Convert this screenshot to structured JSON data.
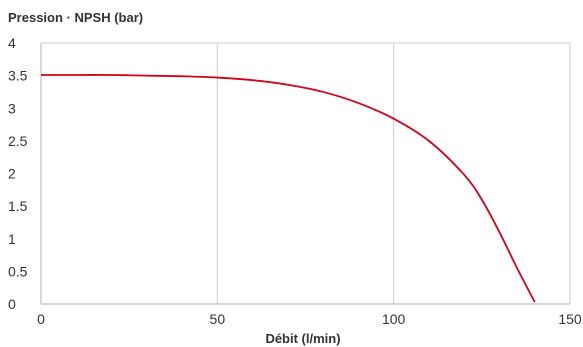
{
  "chart_data": {
    "type": "line",
    "title": "",
    "ylabel": "Pression · NPSH (bar)",
    "xlabel": "Débit (l/min)",
    "xlim": [
      0,
      150
    ],
    "ylim": [
      0,
      4
    ],
    "xticks": [
      0,
      50,
      100,
      150
    ],
    "yticks": [
      0,
      0.5,
      1,
      1.5,
      2,
      2.5,
      3,
      3.5,
      4
    ],
    "xtick_labels": [
      "0",
      "50",
      "100",
      "150"
    ],
    "ytick_labels": [
      "0",
      "0.5",
      "1",
      "1.5",
      "2",
      "2.5",
      "3",
      "3.5",
      "4"
    ],
    "grid": "vertical lines only",
    "series": [
      {
        "color": "#d0021b",
        "x": [
          0,
          10,
          20,
          30,
          40,
          50,
          60,
          70,
          80,
          90,
          100,
          110,
          120,
          125,
          130,
          135,
          140
        ],
        "y": [
          3.51,
          3.51,
          3.51,
          3.5,
          3.49,
          3.47,
          3.43,
          3.36,
          3.25,
          3.08,
          2.84,
          2.5,
          1.98,
          1.6,
          1.1,
          0.55,
          0.03
        ]
      }
    ]
  }
}
